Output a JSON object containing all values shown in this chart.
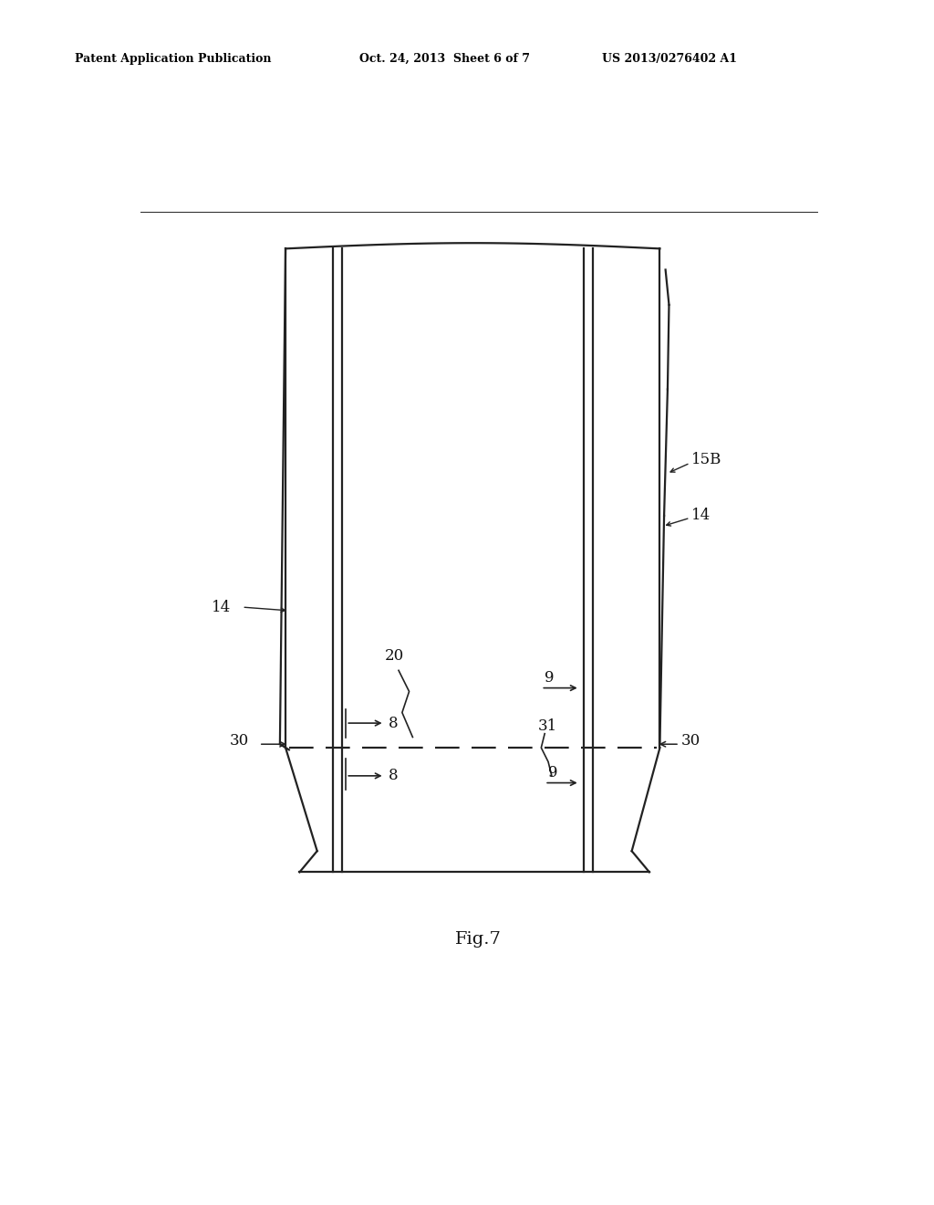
{
  "bg_color": "#ffffff",
  "header_left": "Patent Application Publication",
  "header_mid": "Oct. 24, 2013  Sheet 6 of 7",
  "header_right": "US 2013/0276402 A1",
  "fig_label": "Fig.7",
  "header_fontsize": 9,
  "fig_label_fontsize": 14,
  "lc": "#222222",
  "lw": 1.6
}
